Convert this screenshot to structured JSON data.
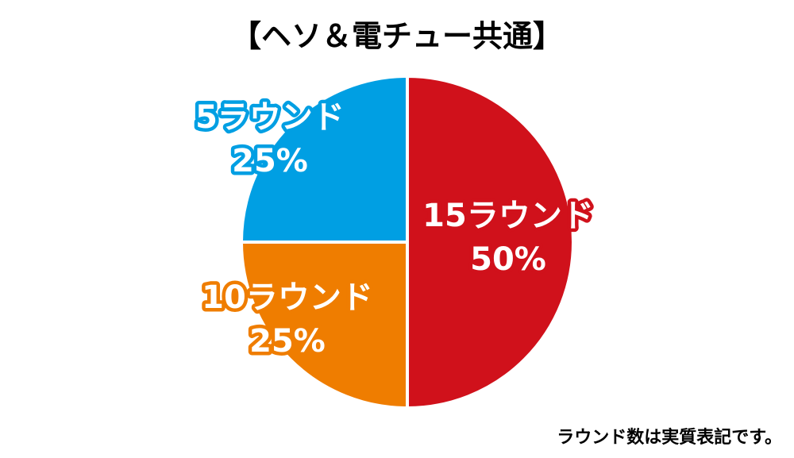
{
  "chart_data": {
    "type": "pie",
    "title": "【ヘソ＆電チュー共通】",
    "categories": [
      "15ラウンド",
      "10ラウンド",
      "5ラウンド"
    ],
    "values": [
      50,
      25,
      25
    ],
    "value_labels": [
      "50%",
      "25%",
      "25%"
    ],
    "colors": [
      "#d0111b",
      "#ef7d00",
      "#009fe3"
    ],
    "note": "ラウンド数は実質表記です。"
  }
}
